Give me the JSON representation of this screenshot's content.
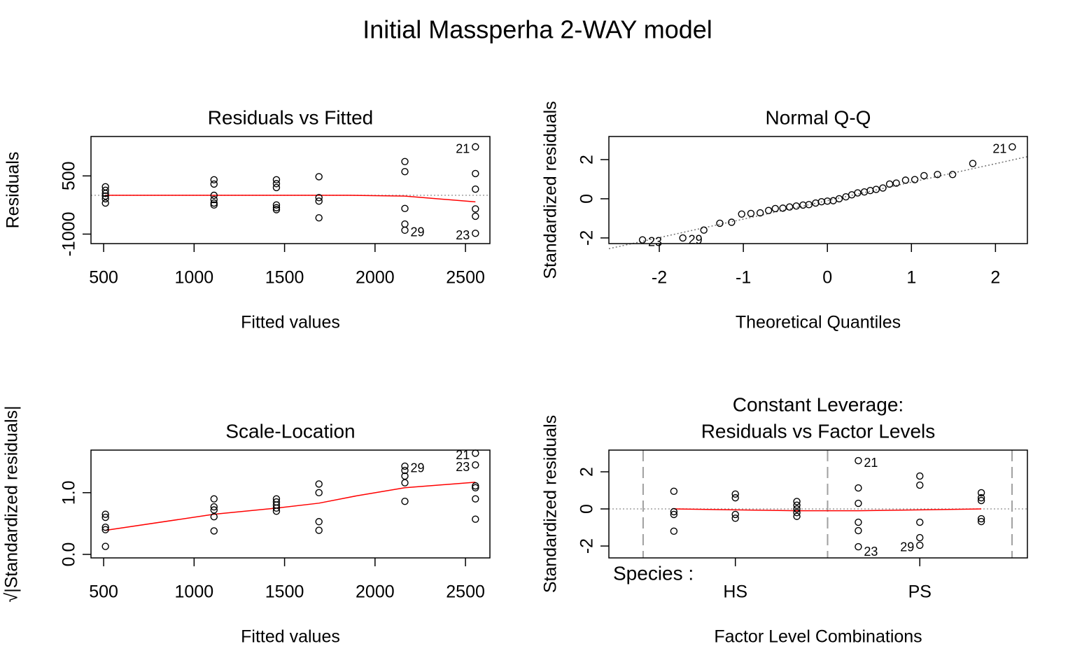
{
  "title": "Initial Massperha 2-WAY model",
  "chart_data": [
    {
      "type": "scatter",
      "title": "Residuals vs Fitted",
      "xlabel": "Fitted values",
      "ylabel": "Residuals",
      "xlim": [
        430,
        2635
      ],
      "ylim": [
        -1245,
        1516
      ],
      "xticks": [
        500,
        1000,
        1500,
        2000,
        2500
      ],
      "yticks": [
        -1000,
        500
      ],
      "point_color": "#000000",
      "x": [
        510,
        510,
        510,
        510,
        510,
        510,
        1110,
        1110,
        1110,
        1110,
        1110,
        1110,
        1455,
        1455,
        1455,
        1455,
        1455,
        1455,
        1690,
        1690,
        1690,
        1690,
        2165,
        2165,
        2165,
        2165,
        2165,
        2555,
        2555,
        2555,
        2555,
        2555,
        2555
      ],
      "values": [
        220,
        130,
        50,
        -20,
        -90,
        -200,
        400,
        290,
        0,
        -110,
        -200,
        -250,
        400,
        300,
        200,
        -250,
        -320,
        -370,
        480,
        -60,
        -150,
        -580,
        870,
        610,
        -340,
        -740,
        -900,
        1250,
        560,
        160,
        -350,
        -540,
        -980
      ],
      "smooth": {
        "color": "#ff0000",
        "x": [
          510,
          1110,
          1455,
          1690,
          1850,
          2165,
          2555
        ],
        "values": [
          0,
          0,
          0,
          0,
          0,
          -20,
          -170
        ]
      },
      "hline": 0,
      "ref_color": "#a0a0a0",
      "annotations": [
        {
          "text": "21",
          "x": 2555,
          "y": 1250
        },
        {
          "text": "29",
          "x": 2165,
          "y": -900
        },
        {
          "text": "23",
          "x": 2555,
          "y": -980
        }
      ]
    },
    {
      "type": "scatter",
      "title": "Normal Q-Q",
      "xlabel": "Theoretical Quantiles",
      "ylabel": "Standardized residuals",
      "xlim": [
        -2.6,
        2.38
      ],
      "ylim": [
        -2.29,
        3.18
      ],
      "xticks": [
        -2,
        -1,
        0,
        1,
        2
      ],
      "yticks": [
        -2,
        0,
        2
      ],
      "point_color": "#000000",
      "x": [
        -2.2,
        -1.72,
        -1.47,
        -1.28,
        -1.14,
        -1.02,
        -0.91,
        -0.8,
        -0.7,
        -0.62,
        -0.53,
        -0.45,
        -0.37,
        -0.29,
        -0.22,
        -0.14,
        -0.07,
        0,
        0.07,
        0.14,
        0.22,
        0.29,
        0.36,
        0.44,
        0.51,
        0.58,
        0.66,
        0.74,
        0.82,
        0.93,
        1.04,
        1.15,
        1.31,
        1.49,
        1.73,
        2.2
      ],
      "values": [
        -2.1,
        -2.0,
        -1.6,
        -1.25,
        -1.2,
        -0.78,
        -0.75,
        -0.72,
        -0.6,
        -0.5,
        -0.48,
        -0.42,
        -0.37,
        -0.32,
        -0.3,
        -0.22,
        -0.15,
        -0.12,
        -0.1,
        0.0,
        0.1,
        0.2,
        0.3,
        0.35,
        0.42,
        0.48,
        0.55,
        0.75,
        0.8,
        0.95,
        0.98,
        1.18,
        1.24,
        1.24,
        1.8,
        2.65
      ],
      "ref_line": {
        "x": [
          -2.6,
          2.38
        ],
        "values": [
          -2.55,
          2.15
        ]
      },
      "ref_color": "#707070",
      "annotations": [
        {
          "text": "23",
          "x": -2.2,
          "y": -2.1
        },
        {
          "text": "29",
          "x": -1.72,
          "y": -2.0
        },
        {
          "text": "21",
          "x": 2.2,
          "y": 2.65
        }
      ]
    },
    {
      "type": "scatter",
      "title": "Scale-Location",
      "xlabel": "Fitted values",
      "ylabel": "√|Standardized residuals|",
      "xlim": [
        430,
        2635
      ],
      "ylim": [
        -0.057,
        1.69
      ],
      "xticks": [
        500,
        1000,
        1500,
        2000,
        2500
      ],
      "yticks": [
        {
          "value": 0,
          "label": "0.0"
        },
        {
          "value": 1,
          "label": "1.0"
        }
      ],
      "point_color": "#000000",
      "x": [
        510,
        510,
        510,
        510,
        510,
        1110,
        1110,
        1110,
        1110,
        1110,
        1455,
        1455,
        1455,
        1455,
        1455,
        1690,
        1690,
        1690,
        1690,
        2165,
        2165,
        2165,
        2165,
        2165,
        2555,
        2555,
        2555,
        2555,
        2555,
        2555
      ],
      "values": [
        0.65,
        0.6,
        0.44,
        0.4,
        0.13,
        0.9,
        0.77,
        0.72,
        0.61,
        0.38,
        0.9,
        0.85,
        0.8,
        0.75,
        0.7,
        1.14,
        1.0,
        0.53,
        0.39,
        1.43,
        1.36,
        1.27,
        1.16,
        0.86,
        1.64,
        1.45,
        1.11,
        1.08,
        0.9,
        0.57
      ],
      "smooth": {
        "color": "#ff0000",
        "x": [
          510,
          1110,
          1455,
          1690,
          1900,
          2165,
          2555
        ],
        "values": [
          0.39,
          0.65,
          0.75,
          0.83,
          0.95,
          1.08,
          1.17
        ]
      },
      "annotations": [
        {
          "text": "21",
          "x": 2555,
          "y": 1.64
        },
        {
          "text": "23",
          "x": 2555,
          "y": 1.45
        },
        {
          "text": "29",
          "x": 2165,
          "y": 1.43
        }
      ]
    },
    {
      "type": "scatter",
      "title": [
        "Constant Leverage:",
        "Residuals vs Factor Levels"
      ],
      "xlabel": "Factor Level Combinations",
      "ylabel": "Standardized residuals",
      "factor_label": "Species :",
      "xlim": [
        -0.057,
        6.75
      ],
      "ylim": [
        -2.64,
        3.17
      ],
      "xticks": [
        {
          "value": 2,
          "label": "HS"
        },
        {
          "value": 5,
          "label": "PS"
        }
      ],
      "yticks": [
        -2,
        0,
        2
      ],
      "point_color": "#000000",
      "x": [
        1,
        1,
        1,
        1,
        2,
        2,
        2,
        2,
        3,
        3,
        3,
        3,
        3,
        4,
        4,
        4,
        4,
        4,
        4,
        5,
        5,
        5,
        5,
        5,
        6,
        6,
        6,
        6,
        6
      ],
      "values": [
        0.95,
        -0.15,
        -0.3,
        -1.2,
        0.8,
        0.6,
        -0.3,
        -0.5,
        0.4,
        0.2,
        0,
        -0.2,
        -0.4,
        2.6,
        1.13,
        0.3,
        -0.72,
        -1.17,
        -2.04,
        1.77,
        1.28,
        -0.72,
        -1.55,
        -1.96,
        0.87,
        0.6,
        0.45,
        -0.53,
        -0.68
      ],
      "smooth": {
        "color": "#ff0000",
        "x": [
          1,
          2,
          3,
          4,
          5,
          6
        ],
        "values": [
          0,
          -0.05,
          -0.1,
          -0.1,
          -0.05,
          0
        ]
      },
      "hline": 0,
      "vlines": [
        0.5,
        3.5,
        6.5
      ],
      "ref_color": "#a0a0a0",
      "annotations": [
        {
          "text": "21",
          "x": 4,
          "y": 2.6
        },
        {
          "text": "23",
          "x": 4,
          "y": -2.04
        },
        {
          "text": "29",
          "x": 5,
          "y": -1.96
        }
      ]
    }
  ]
}
